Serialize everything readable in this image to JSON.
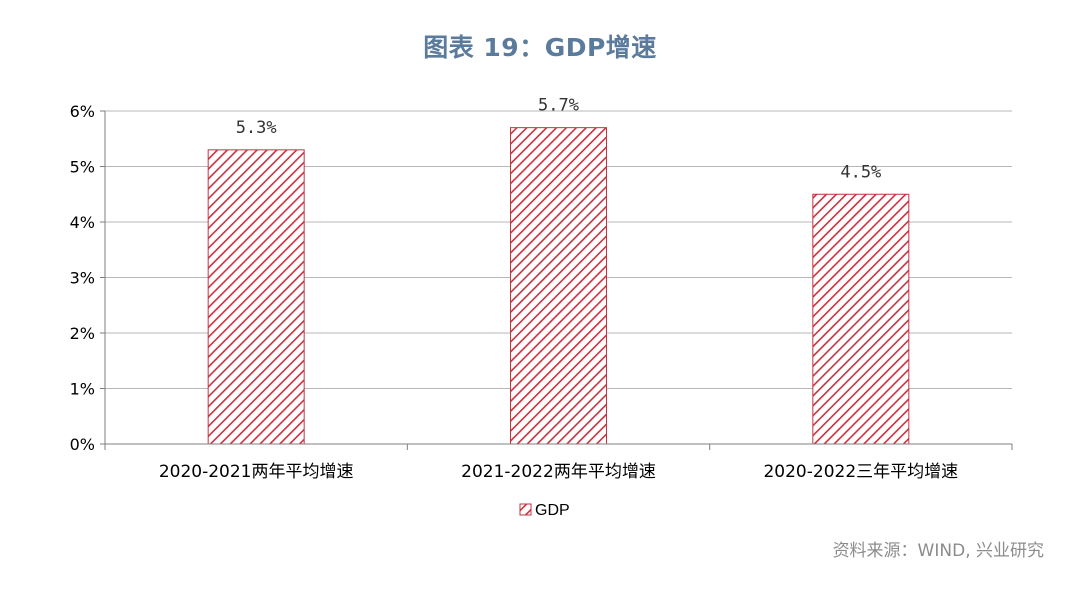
{
  "title": "图表 19：GDP增速",
  "source": "资料来源：WIND, 兴业研究",
  "chart_data": {
    "type": "bar",
    "categories": [
      "2020-2021两年平均增速",
      "2021-2022两年平均增速",
      "2020-2022三年平均增速"
    ],
    "series": [
      {
        "name": "GDP",
        "values": [
          5.3,
          5.7,
          4.5
        ],
        "color": "#c0392b",
        "pattern": "diagonal-hatch"
      }
    ],
    "data_labels": [
      "5.3%",
      "5.7%",
      "4.5%"
    ],
    "ylim": [
      0,
      6
    ],
    "yticks": [
      "0%",
      "1%",
      "2%",
      "3%",
      "4%",
      "5%",
      "6%"
    ],
    "grid": true,
    "legend": "bottom-center"
  }
}
